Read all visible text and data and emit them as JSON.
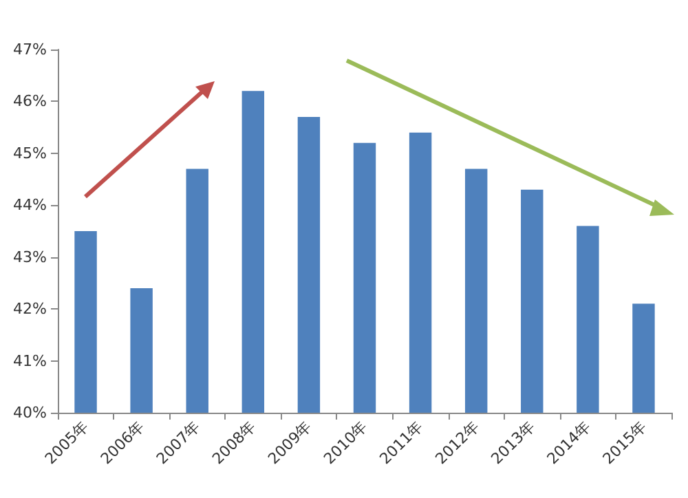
{
  "chart_data": {
    "type": "bar",
    "categories": [
      "2005年",
      "2006年",
      "2007年",
      "2008年",
      "2009年",
      "2010年",
      "2011年",
      "2012年",
      "2013年",
      "2014年",
      "2015年"
    ],
    "values": [
      43.5,
      42.4,
      44.7,
      46.2,
      45.7,
      45.2,
      45.4,
      44.7,
      44.3,
      43.6,
      42.1
    ],
    "color": "#4f81bd",
    "ylim": [
      40,
      47
    ],
    "yticks": [
      {
        "value": 40,
        "label": "40%"
      },
      {
        "value": 41,
        "label": "41%"
      },
      {
        "value": 42,
        "label": "42%"
      },
      {
        "value": 43,
        "label": "43%"
      },
      {
        "value": 44,
        "label": "44%"
      },
      {
        "value": 45,
        "label": "45%"
      },
      {
        "value": 46,
        "label": "46%"
      },
      {
        "value": 47,
        "label": "47%"
      }
    ],
    "grid": false
  }
}
